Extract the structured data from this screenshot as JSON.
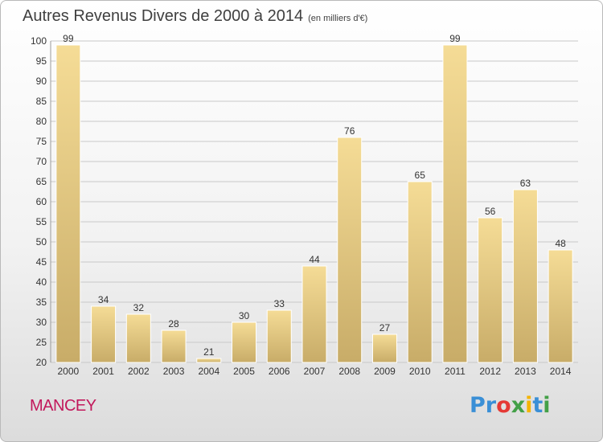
{
  "header": {
    "title": "Autres Revenus Divers de 2000 à 2014",
    "subtitle": "(en milliers d'€)"
  },
  "footer": {
    "town": "MANCEY",
    "logo_text": "Proxiti",
    "logo_colors": [
      "#3a8fd6",
      "#3a8fd6",
      "#e53935",
      "#43a047",
      "#f4b400",
      "#3a8fd6",
      "#43a047"
    ]
  },
  "colors": {
    "bar_light": "#f5dc96",
    "bar_dark": "#c8ac68",
    "grid": "#c8c8c8"
  },
  "chart_data": {
    "type": "bar",
    "title": "Autres Revenus Divers de 2000 à 2014",
    "subtitle": "(en milliers d'€)",
    "categories": [
      "2000",
      "2001",
      "2002",
      "2003",
      "2004",
      "2005",
      "2006",
      "2007",
      "2008",
      "2009",
      "2010",
      "2011",
      "2012",
      "2013",
      "2014"
    ],
    "values": [
      99,
      34,
      32,
      28,
      21,
      30,
      33,
      44,
      76,
      27,
      65,
      99,
      56,
      63,
      48
    ],
    "yticks": [
      20,
      25,
      30,
      35,
      40,
      45,
      50,
      55,
      60,
      65,
      70,
      75,
      80,
      85,
      90,
      95,
      100
    ],
    "ylim": [
      20,
      100
    ],
    "grid": "horizontal",
    "legend": "none"
  }
}
